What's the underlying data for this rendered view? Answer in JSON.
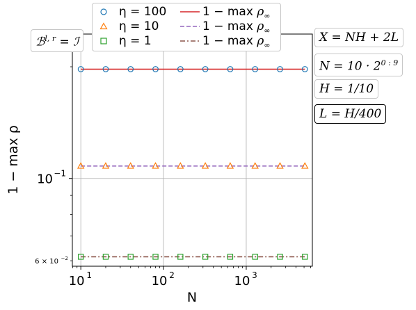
{
  "chart_data": {
    "type": "line",
    "xlabel": "N",
    "ylabel": "1 − max ρ",
    "x_scale": "log",
    "y_scale": "log",
    "xlim": [
      7.9,
      6300
    ],
    "ylim": [
      0.058,
      0.245
    ],
    "grid": true,
    "legend_position": "top",
    "x_ticks": [
      {
        "value": 10,
        "base": "10",
        "exp": "1"
      },
      {
        "value": 100,
        "base": "10",
        "exp": "2"
      },
      {
        "value": 1000,
        "base": "10",
        "exp": "3"
      }
    ],
    "y_ticks": [
      {
        "value": 0.1,
        "base": "10",
        "exp": "−1"
      },
      {
        "value": 0.06,
        "label": "6 × 10",
        "exp": "−2"
      }
    ],
    "x": [
      10,
      20,
      40,
      80,
      160,
      320,
      640,
      1280,
      2560,
      5120
    ],
    "series": [
      {
        "marker_label": "η = 100",
        "line_label": "1 − max ρ∞",
        "marker_values": [
          0.197,
          0.197,
          0.197,
          0.197,
          0.197,
          0.197,
          0.197,
          0.197,
          0.197,
          0.197
        ],
        "line_value": 0.197,
        "marker": "circle",
        "marker_color": "#1f77b4",
        "line_color": "#d62728",
        "line_style": "solid"
      },
      {
        "marker_label": "η = 10",
        "line_label": "1 − max ρ∞",
        "marker_values": [
          0.108,
          0.108,
          0.108,
          0.108,
          0.108,
          0.108,
          0.108,
          0.108,
          0.108,
          0.108
        ],
        "line_value": 0.108,
        "marker": "triangle",
        "marker_color": "#ff7f0e",
        "line_color": "#9467bd",
        "line_style": "dashed"
      },
      {
        "marker_label": "η = 1",
        "line_label": "1 − max ρ∞",
        "marker_values": [
          0.0615,
          0.0615,
          0.0615,
          0.0615,
          0.0615,
          0.0615,
          0.0615,
          0.0615,
          0.0615,
          0.0615
        ],
        "line_value": 0.0615,
        "marker": "square",
        "marker_color": "#2ca02c",
        "line_color": "#8c564b",
        "line_style": "dashdot"
      }
    ],
    "annotations": {
      "boundary": "ℬ^{l,r} = ℐ",
      "x_def": "X = NH + 2L",
      "n_def": "N = 10 · 2^{0:9}",
      "h_def": "H = 1/10",
      "l_def": "L = H/400"
    }
  },
  "annotation_text": {
    "boundary_main": "ℬ",
    "boundary_sup": "l, r",
    "boundary_rest": " = ℐ",
    "x_def": "X = NH + 2L",
    "n_def_main": "N = 10 · 2",
    "n_def_sup": "0 : 9",
    "h_def": "H = 1/10",
    "l_def": "L = H/400"
  },
  "legend_text": {
    "m1": "η = 100",
    "m2": "η = 10",
    "m3": "η = 1",
    "l1_main": "1 − max ",
    "l1_rho": "ρ",
    "l1_sub": "∞",
    "l2_main": "1 − max ",
    "l2_rho": "ρ",
    "l2_sub": "∞",
    "l3_main": "1 − max ",
    "l3_rho": "ρ",
    "l3_sub": "∞"
  },
  "colors": {
    "grid": "#b0b0b0",
    "axis": "#000000"
  }
}
